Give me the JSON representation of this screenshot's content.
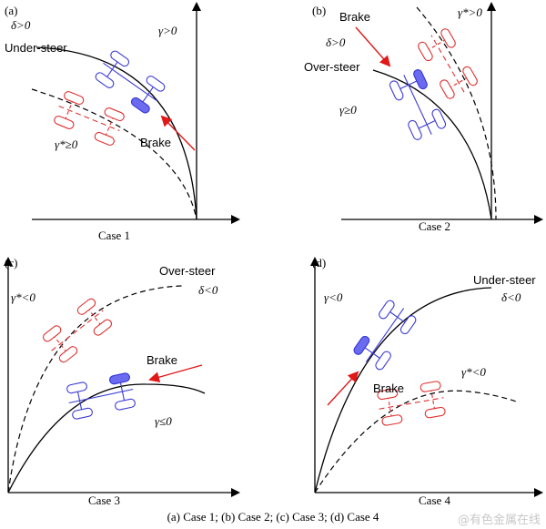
{
  "caption": "(a) Case 1; (b) Case 2; (c) Case 3; (d) Case 4",
  "watermark": "@有色金属在线",
  "panels": [
    {
      "id": "(a)",
      "case": "Case 1",
      "steer": "Under-steer",
      "delta": "δ>0",
      "gamma": "γ>0",
      "gamma_star": "γ*≥0",
      "brake": "Brake"
    },
    {
      "id": "(b)",
      "case": "Case 2",
      "steer": "Over-steer",
      "delta": "δ>0",
      "gamma": "γ≥0",
      "gamma_star": "γ*>0",
      "brake": "Brake"
    },
    {
      "id": "(c)",
      "case": "Case 3",
      "steer": "Over-steer",
      "delta": "δ<0",
      "gamma": "γ≤0",
      "gamma_star": "γ*<0",
      "brake": "Brake"
    },
    {
      "id": "(d)",
      "case": "Case 4",
      "steer": "Under-steer",
      "delta": "δ<0",
      "gamma": "γ<0",
      "gamma_star": "γ*<0",
      "brake": "Brake"
    }
  ],
  "colors": {
    "actual": "#3a3ad8",
    "desired": "#e03030",
    "brake_wheel": "#6b6bf0",
    "arrow": "#e01818",
    "axis": "#000000"
  }
}
